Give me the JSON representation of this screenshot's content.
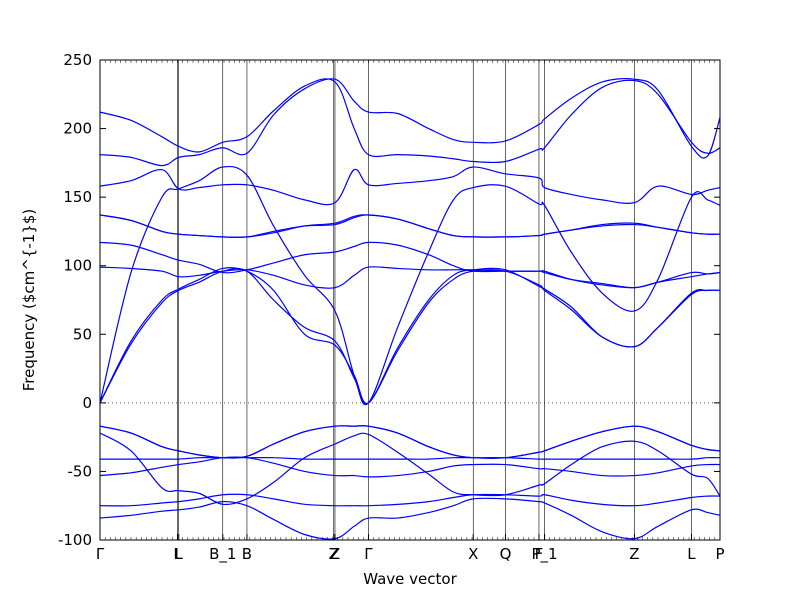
{
  "chart_data": {
    "type": "line",
    "title": "",
    "xlabel": "Wave vector",
    "ylabel": "Frequency ($cm^{-1}$)",
    "ylim": [
      -100,
      250
    ],
    "yticks": [
      -100,
      -50,
      0,
      50,
      100,
      150,
      200,
      250
    ],
    "zero_line": 0,
    "grid": false,
    "legend": "none",
    "line_color": "#0000ff",
    "zero_line_color": "#555555",
    "high_symmetry_points": [
      {
        "label": "Γ",
        "x": 0.0
      },
      {
        "label": "L",
        "x": 0.125
      },
      {
        "label": "L",
        "x": 0.127
      },
      {
        "label": "B_1",
        "x": 0.198
      },
      {
        "label": "B",
        "x": 0.237
      },
      {
        "label": "Z",
        "x": 0.377
      },
      {
        "label": "Z",
        "x": 0.379
      },
      {
        "label": "Γ",
        "x": 0.433
      },
      {
        "label": "X",
        "x": 0.602
      },
      {
        "label": "Q",
        "x": 0.654
      },
      {
        "label": "F",
        "x": 0.708
      },
      {
        "label": "P_1",
        "x": 0.717
      },
      {
        "label": "Z",
        "x": 0.862
      },
      {
        "label": "L",
        "x": 0.954
      },
      {
        "label": "P",
        "x": 1.0
      }
    ],
    "x": [
      0.0,
      0.05,
      0.1,
      0.127,
      0.16,
      0.198,
      0.237,
      0.28,
      0.33,
      0.379,
      0.41,
      0.433,
      0.48,
      0.53,
      0.57,
      0.602,
      0.654,
      0.708,
      0.717,
      0.76,
      0.81,
      0.862,
      0.9,
      0.954,
      0.98,
      1.0
    ],
    "series": [
      {
        "values": [
          212,
          206,
          194,
          187,
          183,
          190,
          194,
          213,
          231,
          234,
          200,
          181,
          181,
          180,
          178,
          176,
          176,
          185,
          186,
          210,
          230,
          235,
          225,
          190,
          182,
          186
        ]
      },
      {
        "values": [
          181,
          179,
          173,
          179,
          181,
          186,
          182,
          210,
          229,
          236,
          220,
          212,
          211,
          200,
          192,
          190,
          191,
          203,
          207,
          222,
          234,
          236,
          228,
          187,
          180,
          208
        ]
      },
      {
        "values": [
          158,
          162,
          170,
          156,
          157,
          159,
          159,
          155,
          148,
          146,
          170,
          159,
          160,
          162,
          165,
          172,
          167,
          164,
          157,
          152,
          148,
          146,
          158,
          152,
          155,
          157
        ]
      },
      {
        "values": [
          0,
          95,
          150,
          156,
          162,
          172,
          166,
          129,
          93,
          67,
          20,
          0,
          55,
          110,
          148,
          157,
          158,
          145,
          144,
          110,
          80,
          67,
          90,
          150,
          148,
          144
        ]
      },
      {
        "values": [
          137,
          133,
          125,
          123,
          122,
          121,
          121,
          124,
          129,
          131,
          136,
          137,
          134,
          127,
          122,
          121,
          121,
          122,
          123,
          126,
          130,
          131,
          128,
          124,
          123,
          123
        ]
      },
      {
        "values": [
          137,
          133,
          125,
          123,
          122,
          121,
          121,
          125,
          129,
          130,
          135,
          137,
          134,
          127,
          122,
          121,
          121,
          122,
          123,
          126,
          129,
          130,
          128,
          124,
          123,
          123
        ]
      },
      {
        "values": [
          117,
          115,
          108,
          104,
          101,
          95,
          97,
          102,
          108,
          110,
          114,
          117,
          115,
          108,
          100,
          96,
          96,
          96,
          95,
          90,
          87,
          84,
          88,
          95,
          94,
          95
        ]
      },
      {
        "values": [
          99,
          98,
          96,
          92,
          93,
          96,
          97,
          93,
          86,
          84,
          93,
          99,
          98,
          97,
          97,
          97,
          96,
          96,
          96,
          90,
          86,
          84,
          88,
          92,
          94,
          95
        ]
      },
      {
        "values": [
          0,
          45,
          75,
          83,
          90,
          98,
          96,
          82,
          50,
          42,
          20,
          0,
          40,
          75,
          93,
          97,
          97,
          85,
          83,
          70,
          48,
          41,
          55,
          80,
          82,
          82
        ]
      },
      {
        "values": [
          0,
          43,
          73,
          82,
          88,
          96,
          96,
          75,
          55,
          45,
          18,
          0,
          38,
          73,
          90,
          96,
          96,
          86,
          82,
          68,
          48,
          41,
          55,
          79,
          82,
          82
        ]
      },
      {
        "values": [
          -17,
          -22,
          -32,
          -35,
          -38,
          -40,
          -39,
          -30,
          -21,
          -17,
          -17,
          -17,
          -22,
          -32,
          -38,
          -40,
          -40,
          -36,
          -35,
          -28,
          -21,
          -17,
          -21,
          -31,
          -34,
          -35
        ]
      },
      {
        "values": [
          -17,
          -22,
          -32,
          -35,
          -38,
          -40,
          -39,
          -30,
          -21,
          -17,
          -17,
          -17,
          -22,
          -32,
          -38,
          -40,
          -40,
          -36,
          -35,
          -28,
          -21,
          -17,
          -21,
          -31,
          -34,
          -35
        ]
      },
      {
        "values": [
          -41,
          -41,
          -41,
          -41,
          -40,
          -40,
          -40,
          -40,
          -41,
          -41,
          -41,
          -41,
          -41,
          -41,
          -40,
          -40,
          -40,
          -41,
          -41,
          -41,
          -41,
          -41,
          -41,
          -41,
          -40,
          -40
        ]
      },
      {
        "values": [
          -22,
          -35,
          -62,
          -64,
          -66,
          -74,
          -70,
          -58,
          -40,
          -30,
          -24,
          -23,
          -36,
          -52,
          -65,
          -67,
          -67,
          -60,
          -59,
          -45,
          -32,
          -28,
          -35,
          -52,
          -55,
          -68
        ]
      },
      {
        "values": [
          -53,
          -51,
          -47,
          -45,
          -43,
          -40,
          -40,
          -44,
          -50,
          -53,
          -53,
          -54,
          -53,
          -50,
          -46,
          -45,
          -45,
          -48,
          -48,
          -50,
          -53,
          -53,
          -51,
          -46,
          -45,
          -45
        ]
      },
      {
        "values": [
          -75,
          -75,
          -73,
          -72,
          -70,
          -67,
          -67,
          -70,
          -74,
          -75,
          -75,
          -75,
          -74,
          -72,
          -69,
          -67,
          -67,
          -68,
          -67,
          -71,
          -74,
          -75,
          -73,
          -69,
          -68,
          -68
        ]
      },
      {
        "values": [
          -84,
          -82,
          -79,
          -78,
          -76,
          -72,
          -75,
          -85,
          -96,
          -99,
          -90,
          -84,
          -84,
          -80,
          -75,
          -70,
          -70,
          -72,
          -73,
          -82,
          -94,
          -99,
          -90,
          -78,
          -80,
          -82
        ]
      }
    ]
  }
}
